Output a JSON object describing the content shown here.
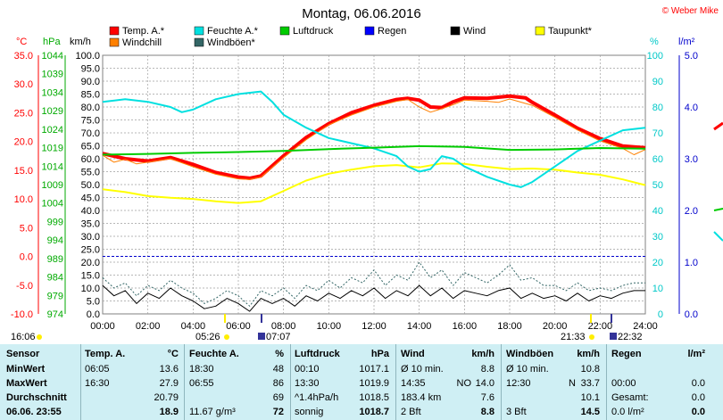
{
  "chart_data": {
    "type": "line",
    "title": "Montag, 06.06.2016",
    "copyright": "© Weber Mike",
    "x_ticks": [
      "00:00",
      "02:00",
      "04:00",
      "06:00",
      "08:00",
      "10:00",
      "12:00",
      "14:00",
      "16:00",
      "18:00",
      "20:00",
      "22:00",
      "24:00"
    ],
    "axes": {
      "temp_c": {
        "label": "°C",
        "ticks": [
          "35.0",
          "30.0",
          "25.0",
          "20.0",
          "15.0",
          "10.0",
          "5.0",
          "0.0",
          "-5.0",
          "-10.0"
        ],
        "range": [
          -10,
          35
        ],
        "color": "#ff0000"
      },
      "pressure_hpa": {
        "label": "hPa",
        "ticks": [
          "1044",
          "1039",
          "1034",
          "1029",
          "1024",
          "1019",
          "1014",
          "1009",
          "1004",
          "999",
          "994",
          "989",
          "984",
          "979",
          "974"
        ],
        "range": [
          974,
          1044
        ],
        "color": "#00aa00"
      },
      "wind_kmh": {
        "label": "km/h",
        "ticks": [
          "100.0",
          "95.0",
          "90.0",
          "85.0",
          "80.0",
          "75.0",
          "70.0",
          "65.0",
          "60.0",
          "55.0",
          "50.0",
          "45.0",
          "40.0",
          "35.0",
          "30.0",
          "25.0",
          "20.0",
          "15.0",
          "10.0",
          "5.0",
          "0.0"
        ],
        "range": [
          0,
          100
        ],
        "color": "#000000"
      },
      "humidity_pct": {
        "label": "%",
        "ticks": [
          "100",
          "90",
          "80",
          "70",
          "60",
          "50",
          "40",
          "30",
          "20",
          "10",
          "0"
        ],
        "range": [
          0,
          100
        ],
        "color": "#00c8c8"
      },
      "rain_lm2": {
        "label": "l/m²",
        "ticks": [
          "5.0",
          "4.0",
          "3.0",
          "2.0",
          "1.0",
          "0.0"
        ],
        "range": [
          0,
          5
        ],
        "color": "#0000cc"
      }
    },
    "legend": [
      {
        "name": "Temp. A.*",
        "color": "#ff0000"
      },
      {
        "name": "Feuchte A.*",
        "color": "#00e0e0"
      },
      {
        "name": "Luftdruck",
        "color": "#00cc00"
      },
      {
        "name": "Regen",
        "color": "#0000ff"
      },
      {
        "name": "Wind",
        "color": "#000000"
      },
      {
        "name": "Taupunkt*",
        "color": "#ffff00"
      },
      {
        "name": "Windchill",
        "color": "#ff8000"
      },
      {
        "name": "Windböen*",
        "color": "#336666"
      }
    ],
    "series": [
      {
        "key": "temp",
        "axis": "temp_c",
        "color": "#ff0000",
        "width": 4,
        "x": [
          0,
          1,
          2,
          3,
          4,
          5,
          6,
          6.5,
          7,
          8,
          9,
          10,
          11,
          12,
          13,
          13.5,
          14,
          14.5,
          15,
          15.5,
          16,
          17,
          18,
          18.7,
          19,
          20,
          21,
          22,
          23,
          24
        ],
        "y": [
          17.9,
          17.0,
          16.6,
          17.2,
          16.0,
          14.6,
          13.8,
          13.6,
          14.0,
          17.5,
          20.7,
          23.1,
          25.0,
          26.3,
          27.3,
          27.5,
          27.2,
          26.0,
          25.9,
          26.9,
          27.6,
          27.5,
          27.9,
          27.6,
          26.8,
          24.6,
          22.3,
          20.5,
          19.2,
          18.9
        ]
      },
      {
        "key": "windchill",
        "axis": "temp_c",
        "color": "#ff8000",
        "width": 1,
        "x": [
          0,
          0.5,
          1,
          1.5,
          2,
          3,
          4,
          5,
          6,
          6.5,
          7,
          8,
          9,
          10,
          11,
          12,
          13,
          13.5,
          14,
          14.5,
          15,
          15.5,
          16,
          17,
          17.5,
          18,
          19,
          20,
          21,
          22,
          23,
          23.5,
          24
        ],
        "y": [
          17.6,
          16.4,
          16.9,
          16.1,
          16.4,
          17.0,
          15.6,
          14.3,
          13.5,
          13.4,
          13.8,
          17.2,
          20.3,
          22.9,
          24.6,
          26.0,
          27.0,
          27.3,
          26.0,
          25.1,
          25.7,
          26.4,
          27.2,
          27.0,
          26.8,
          27.4,
          26.3,
          24.2,
          22.0,
          20.1,
          18.8,
          17.7,
          18.6
        ]
      },
      {
        "key": "dewpoint",
        "axis": "temp_c",
        "color": "#ffff00",
        "width": 2,
        "x": [
          0,
          1,
          2,
          3,
          4,
          5,
          6,
          7,
          8,
          9,
          10,
          11,
          12,
          13,
          14,
          15,
          16,
          17,
          18,
          19,
          20,
          21,
          22,
          23,
          24
        ],
        "y": [
          11.7,
          11.2,
          10.5,
          10.2,
          10.0,
          9.6,
          9.3,
          9.6,
          11.4,
          13.2,
          14.4,
          15.1,
          15.7,
          15.9,
          15.5,
          16.2,
          16.1,
          15.6,
          15.2,
          15.3,
          15.1,
          14.6,
          14.2,
          13.4,
          12.4
        ]
      },
      {
        "key": "humidity",
        "axis": "humidity_pct",
        "color": "#00e0e0",
        "width": 2,
        "x": [
          0,
          1,
          2,
          3,
          3.5,
          4,
          5,
          6,
          7,
          7.5,
          8,
          9,
          10,
          11,
          12,
          13,
          13.5,
          14,
          14.5,
          15,
          15.5,
          16,
          17,
          18,
          18.5,
          19,
          20,
          21,
          22,
          23,
          24
        ],
        "y": [
          82,
          83,
          82,
          80,
          78,
          79,
          83,
          85,
          86,
          82,
          77,
          72,
          68,
          66,
          64,
          61,
          57,
          55,
          56,
          61,
          60,
          57,
          53,
          50,
          49,
          51,
          57,
          63,
          67,
          71,
          72
        ]
      },
      {
        "key": "pressure",
        "axis": "pressure_hpa",
        "color": "#00cc00",
        "width": 2,
        "x": [
          0,
          2,
          4,
          6,
          8,
          10,
          12,
          14,
          16,
          18,
          20,
          22,
          24
        ],
        "y": [
          1017.1,
          1017.3,
          1017.6,
          1017.8,
          1018.1,
          1018.6,
          1019.0,
          1019.4,
          1019.2,
          1018.4,
          1018.5,
          1018.9,
          1018.7
        ]
      },
      {
        "key": "wind",
        "axis": "wind_kmh",
        "color": "#000000",
        "width": 1,
        "x": [
          0,
          0.5,
          1,
          1.5,
          2,
          2.5,
          3,
          3.5,
          4,
          4.5,
          5,
          5.5,
          6,
          6.5,
          7,
          7.5,
          8,
          8.5,
          9,
          9.5,
          10,
          10.5,
          11,
          11.5,
          12,
          12.5,
          13,
          13.5,
          14,
          14.5,
          15,
          15.5,
          16,
          16.5,
          17,
          17.5,
          18,
          18.5,
          19,
          19.5,
          20,
          20.5,
          21,
          21.5,
          22,
          22.5,
          23,
          23.5,
          24
        ],
        "y": [
          11,
          7,
          9,
          4,
          8,
          6,
          10,
          7,
          5,
          2,
          3,
          6,
          4,
          1,
          6,
          4,
          6,
          3,
          7,
          5,
          8,
          6,
          9,
          7,
          10,
          6,
          9,
          7,
          11,
          7,
          10,
          6,
          9,
          8,
          7,
          9,
          10,
          6,
          8,
          6,
          7,
          5,
          8,
          5,
          7,
          6,
          8,
          9,
          9
        ]
      },
      {
        "key": "gusts",
        "axis": "wind_kmh",
        "color": "#336666",
        "width": 1,
        "dash": "2,2",
        "x": [
          0,
          0.5,
          1,
          1.5,
          2,
          2.5,
          3,
          3.5,
          4,
          4.5,
          5,
          5.5,
          6,
          6.5,
          7,
          7.5,
          8,
          8.5,
          9,
          9.5,
          10,
          10.5,
          11,
          11.5,
          12,
          12.5,
          13,
          13.5,
          14,
          14.5,
          15,
          15.5,
          16,
          16.5,
          17,
          17.5,
          18,
          18.5,
          19,
          19.5,
          20,
          20.5,
          21,
          21.5,
          22,
          22.5,
          23,
          23.5,
          24
        ],
        "y": [
          14,
          10,
          12,
          7,
          11,
          9,
          13,
          10,
          8,
          4,
          6,
          9,
          7,
          3,
          9,
          7,
          10,
          6,
          11,
          9,
          13,
          10,
          14,
          12,
          17,
          11,
          15,
          13,
          20,
          14,
          17,
          11,
          16,
          14,
          12,
          15,
          19,
          13,
          14,
          11,
          11,
          9,
          12,
          9,
          10,
          9,
          11,
          12,
          12
        ]
      }
    ],
    "markers": {
      "sunrise_day": "16:06",
      "sunrise": "05:26",
      "sunset": "21:33",
      "moon1": "07:07",
      "moon2": "22:32"
    }
  },
  "table": {
    "header": {
      "sensor": "Sensor",
      "temp": "Temp. A.",
      "temp_unit": "°C",
      "hum": "Feuchte A.",
      "hum_unit": "%",
      "press": "Luftdruck",
      "press_unit": "hPa",
      "wind": "Wind",
      "wind_unit": "km/h",
      "gust": "Windböen",
      "gust_unit": "km/h",
      "rain": "Regen",
      "rain_unit": "l/m²"
    },
    "rows": [
      {
        "label": "MinWert",
        "temp_t": "06:05",
        "temp_v": "13.6",
        "hum_t": "18:30",
        "hum_v": "48",
        "press_t": "00:10",
        "press_v": "1017.1",
        "wind_l": "Ø 10 min.",
        "wind_r": "",
        "wind_v": "8.8",
        "gust_l": "Ø 10 min.",
        "gust_r": "",
        "gust_v": "10.8",
        "rain_l": "",
        "rain_v": ""
      },
      {
        "label": "MaxWert",
        "temp_t": "16:30",
        "temp_v": "27.9",
        "hum_t": "06:55",
        "hum_v": "86",
        "press_t": "13:30",
        "press_v": "1019.9",
        "wind_l": "14:35",
        "wind_r": "NO",
        "wind_v": "14.0",
        "gust_l": "12:30",
        "gust_r": "N",
        "gust_v": "33.7",
        "rain_l": "00:00",
        "rain_v": "0.0"
      },
      {
        "label": "Durchschnitt",
        "temp_t": "",
        "temp_v": "20.79",
        "hum_t": "",
        "hum_v": "69",
        "press_t": "^1.4hPa/h",
        "press_v": "1018.5",
        "wind_l": "183.4 km",
        "wind_r": "",
        "wind_v": "7.6",
        "gust_l": "",
        "gust_r": "",
        "gust_v": "10.1",
        "rain_l": "Gesamt:",
        "rain_v": "0.0"
      },
      {
        "label": "06.06. 23:55",
        "temp_t": "",
        "temp_v": "18.9",
        "hum_t": "11.67 g/m³",
        "hum_v": "72",
        "press_t": "sonnig",
        "press_v": "1018.7",
        "wind_l": "2 Bft",
        "wind_r": "",
        "wind_v": "8.8",
        "gust_l": "3 Bft",
        "gust_r": "",
        "gust_v": "14.5",
        "rain_l": "0.0 l/m²",
        "rain_v": "0.0"
      }
    ]
  }
}
